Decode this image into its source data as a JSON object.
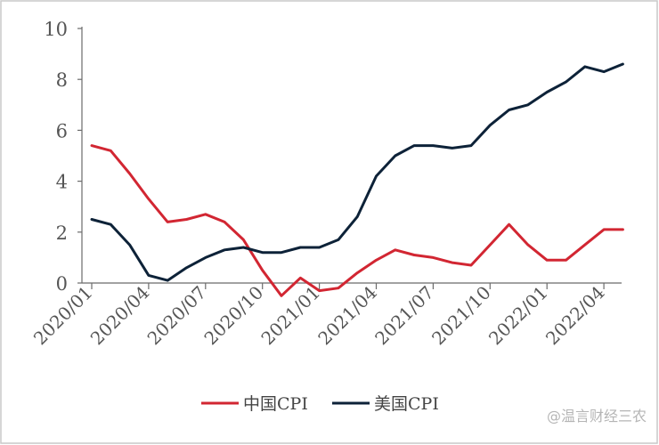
{
  "colors": {
    "china": "#d22632",
    "us": "#0d2238",
    "axis": "#6b6b6b",
    "border": "#c9c9c9",
    "text": "#555555",
    "watermark": "#b5b5b5"
  },
  "chart_data": {
    "type": "line",
    "title": "",
    "xlabel": "",
    "ylabel": "",
    "ylim": [
      0,
      10
    ],
    "y_ticks": [
      "0",
      "2",
      "4",
      "6",
      "8",
      "10"
    ],
    "x_tick_labels": [
      "2020/01",
      "2020/04",
      "2020/07",
      "2020/10",
      "2021/01",
      "2021/04",
      "2021/07",
      "2021/10",
      "2022/01",
      "2022/04"
    ],
    "x": [
      "2020/01",
      "2020/02",
      "2020/03",
      "2020/04",
      "2020/05",
      "2020/06",
      "2020/07",
      "2020/08",
      "2020/09",
      "2020/10",
      "2020/11",
      "2020/12",
      "2021/01",
      "2021/02",
      "2021/03",
      "2021/04",
      "2021/05",
      "2021/06",
      "2021/07",
      "2021/08",
      "2021/09",
      "2021/10",
      "2021/11",
      "2021/12",
      "2022/01",
      "2022/02",
      "2022/03",
      "2022/04",
      "2022/05"
    ],
    "series": [
      {
        "name": "中国CPI",
        "values": [
          5.4,
          5.2,
          4.3,
          3.3,
          2.4,
          2.5,
          2.7,
          2.4,
          1.7,
          0.5,
          -0.5,
          0.2,
          -0.3,
          -0.2,
          0.4,
          0.9,
          1.3,
          1.1,
          1.0,
          0.8,
          0.7,
          1.5,
          2.3,
          1.5,
          0.9,
          0.9,
          1.5,
          2.1,
          2.1
        ]
      },
      {
        "name": "美国CPI",
        "values": [
          2.5,
          2.3,
          1.5,
          0.3,
          0.1,
          0.6,
          1.0,
          1.3,
          1.4,
          1.2,
          1.2,
          1.4,
          1.4,
          1.7,
          2.6,
          4.2,
          5.0,
          5.4,
          5.4,
          5.3,
          5.4,
          6.2,
          6.8,
          7.0,
          7.5,
          7.9,
          8.5,
          8.3,
          8.6
        ]
      }
    ],
    "legend_position": "bottom",
    "grid": false
  },
  "watermark": {
    "text": "@温言财经三农"
  }
}
